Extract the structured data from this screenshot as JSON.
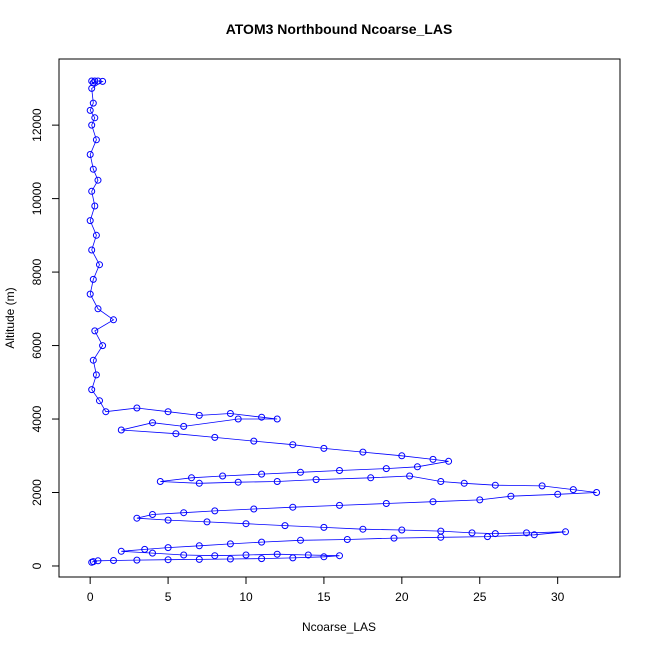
{
  "chart_data": {
    "type": "scatter",
    "title": "ATOM3 Northbound Ncoarse_LAS",
    "xlabel": "Ncoarse_LAS",
    "ylabel": "Altitude (m)",
    "xlim": [
      -2,
      34
    ],
    "ylim": [
      -300,
      13800
    ],
    "x_ticks": [
      0,
      5,
      10,
      15,
      20,
      25,
      30
    ],
    "y_ticks": [
      0,
      2000,
      4000,
      6000,
      8000,
      10000,
      12000
    ],
    "grid": false,
    "marker": "open-circle",
    "connect_points": true,
    "color": "#0000ff",
    "points": [
      [
        0.1,
        13200
      ],
      [
        0.2,
        13150
      ],
      [
        0.3,
        13200
      ],
      [
        0.5,
        13200
      ],
      [
        0.8,
        13190
      ],
      [
        0.1,
        13000
      ],
      [
        0.2,
        12600
      ],
      [
        0.0,
        12400
      ],
      [
        0.3,
        12200
      ],
      [
        0.1,
        12000
      ],
      [
        0.4,
        11600
      ],
      [
        0.0,
        11200
      ],
      [
        0.2,
        10800
      ],
      [
        0.5,
        10500
      ],
      [
        0.1,
        10200
      ],
      [
        0.3,
        9800
      ],
      [
        0.0,
        9400
      ],
      [
        0.4,
        9000
      ],
      [
        0.1,
        8600
      ],
      [
        0.6,
        8200
      ],
      [
        0.2,
        7800
      ],
      [
        0.0,
        7400
      ],
      [
        0.5,
        7000
      ],
      [
        1.5,
        6700
      ],
      [
        0.3,
        6400
      ],
      [
        0.8,
        6000
      ],
      [
        0.2,
        5600
      ],
      [
        0.4,
        5200
      ],
      [
        0.1,
        4800
      ],
      [
        0.6,
        4500
      ],
      [
        1.0,
        4200
      ],
      [
        3.0,
        4300
      ],
      [
        5.0,
        4200
      ],
      [
        7.0,
        4100
      ],
      [
        9.0,
        4150
      ],
      [
        11.0,
        4050
      ],
      [
        12.0,
        4000
      ],
      [
        9.5,
        4000
      ],
      [
        6.0,
        3800
      ],
      [
        4.0,
        3900
      ],
      [
        2.0,
        3700
      ],
      [
        5.5,
        3600
      ],
      [
        8.0,
        3500
      ],
      [
        10.5,
        3400
      ],
      [
        13.0,
        3300
      ],
      [
        15.0,
        3200
      ],
      [
        17.5,
        3100
      ],
      [
        20.0,
        3000
      ],
      [
        22.0,
        2900
      ],
      [
        23.0,
        2850
      ],
      [
        21.0,
        2700
      ],
      [
        19.0,
        2650
      ],
      [
        16.0,
        2600
      ],
      [
        13.5,
        2550
      ],
      [
        11.0,
        2500
      ],
      [
        8.5,
        2450
      ],
      [
        6.5,
        2400
      ],
      [
        4.5,
        2300
      ],
      [
        7.0,
        2250
      ],
      [
        9.5,
        2280
      ],
      [
        12.0,
        2300
      ],
      [
        14.5,
        2350
      ],
      [
        18.0,
        2400
      ],
      [
        20.5,
        2450
      ],
      [
        22.5,
        2300
      ],
      [
        24.0,
        2250
      ],
      [
        26.0,
        2200
      ],
      [
        29.0,
        2180
      ],
      [
        31.0,
        2080
      ],
      [
        32.5,
        2000
      ],
      [
        30.0,
        1950
      ],
      [
        27.0,
        1900
      ],
      [
        25.0,
        1800
      ],
      [
        22.0,
        1750
      ],
      [
        19.0,
        1700
      ],
      [
        16.0,
        1650
      ],
      [
        13.0,
        1600
      ],
      [
        10.5,
        1550
      ],
      [
        8.0,
        1500
      ],
      [
        6.0,
        1450
      ],
      [
        4.0,
        1400
      ],
      [
        3.0,
        1300
      ],
      [
        5.0,
        1250
      ],
      [
        7.5,
        1200
      ],
      [
        10.0,
        1150
      ],
      [
        12.5,
        1100
      ],
      [
        15.0,
        1050
      ],
      [
        17.5,
        1000
      ],
      [
        20.0,
        980
      ],
      [
        22.5,
        950
      ],
      [
        24.5,
        900
      ],
      [
        26.0,
        880
      ],
      [
        28.0,
        900
      ],
      [
        30.5,
        930
      ],
      [
        28.5,
        850
      ],
      [
        25.5,
        800
      ],
      [
        22.5,
        780
      ],
      [
        19.5,
        760
      ],
      [
        16.5,
        720
      ],
      [
        13.5,
        700
      ],
      [
        11.0,
        650
      ],
      [
        9.0,
        600
      ],
      [
        7.0,
        550
      ],
      [
        5.0,
        500
      ],
      [
        3.5,
        450
      ],
      [
        2.0,
        400
      ],
      [
        4.0,
        350
      ],
      [
        6.0,
        300
      ],
      [
        8.0,
        280
      ],
      [
        10.0,
        300
      ],
      [
        12.0,
        320
      ],
      [
        14.0,
        300
      ],
      [
        16.0,
        280
      ],
      [
        15.0,
        250
      ],
      [
        13.0,
        220
      ],
      [
        11.0,
        200
      ],
      [
        9.0,
        190
      ],
      [
        7.0,
        180
      ],
      [
        5.0,
        170
      ],
      [
        3.0,
        160
      ],
      [
        1.5,
        150
      ],
      [
        0.5,
        140
      ],
      [
        0.2,
        120
      ],
      [
        0.1,
        100
      ]
    ]
  }
}
